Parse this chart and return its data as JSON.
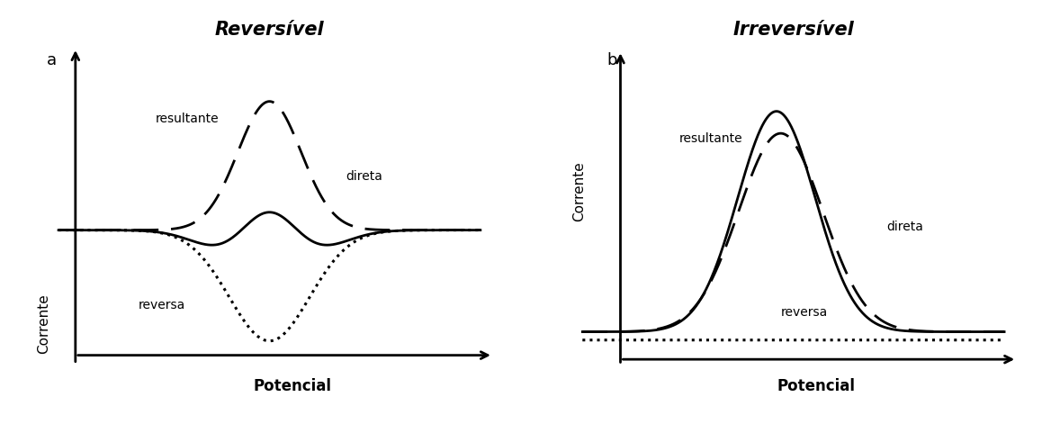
{
  "title_a": "Reversível",
  "title_b": "Irreversível",
  "xlabel": "Potencial",
  "ylabel": "Corrente",
  "label_a": "a",
  "label_b": "b",
  "label_resultante": "resultante",
  "label_direta": "direta",
  "label_reversa": "reversa",
  "bg_color": "#ffffff",
  "line_color": "#000000"
}
